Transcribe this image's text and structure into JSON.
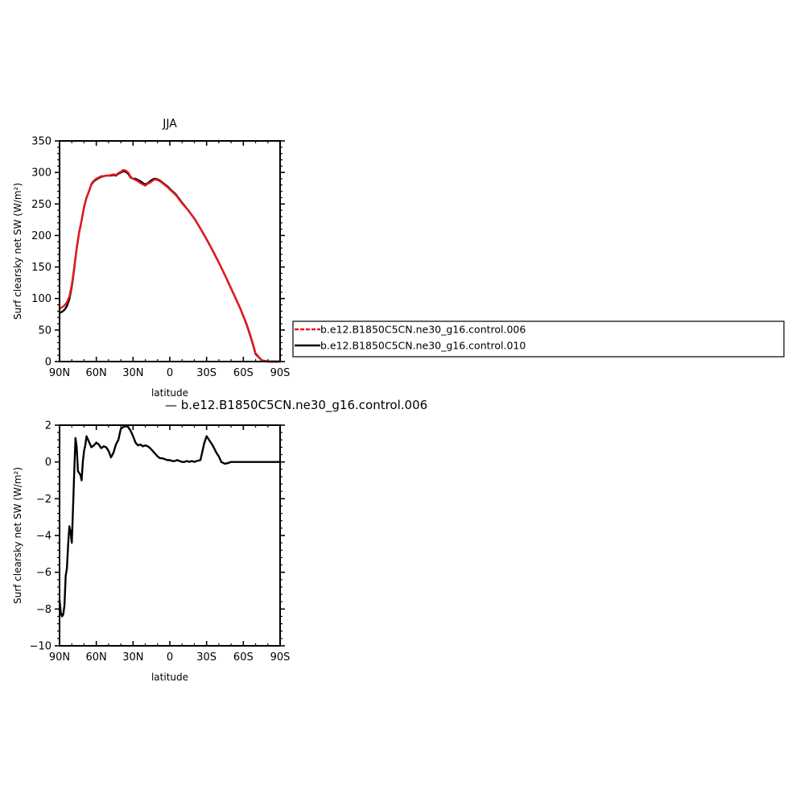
{
  "chart_data": [
    {
      "type": "line",
      "title": "JJA",
      "xlabel": "latitude",
      "ylabel": "Surf clearsky net SW (W/m²)",
      "xlim": [
        90,
        -90
      ],
      "ylim": [
        0,
        350
      ],
      "xticks": [
        90,
        60,
        30,
        0,
        -30,
        -60,
        -90
      ],
      "xtick_labels": [
        "90N",
        "60N",
        "30N",
        "0",
        "30S",
        "60S",
        "90S"
      ],
      "yticks": [
        0,
        50,
        100,
        150,
        200,
        250,
        300,
        350
      ],
      "ytick_labels": [
        "0",
        "50",
        "100",
        "150",
        "200",
        "250",
        "300",
        "350"
      ],
      "legend_position": "right",
      "series": [
        {
          "name": "b.e12.B1850C5CN.ne30_g16.control.006",
          "color": "#e8171e",
          "x": [
            90,
            88,
            86,
            84,
            82,
            80,
            78,
            76,
            74,
            72,
            70,
            68,
            66,
            64,
            62,
            60,
            58,
            56,
            54,
            52,
            50,
            48,
            46,
            44,
            42,
            40,
            38,
            36,
            34,
            32,
            30,
            28,
            26,
            24,
            22,
            20,
            18,
            16,
            14,
            12,
            10,
            8,
            6,
            4,
            2,
            0,
            -5,
            -10,
            -15,
            -20,
            -25,
            -30,
            -35,
            -40,
            -45,
            -50,
            -55,
            -58,
            -60,
            -62,
            -64,
            -66,
            -68,
            -70,
            -75,
            -80,
            -90
          ],
          "values": [
            84,
            86,
            89,
            94,
            103,
            122,
            150,
            180,
            205,
            224,
            245,
            260,
            270,
            282,
            287,
            290,
            292,
            294,
            294,
            295,
            295,
            296,
            297,
            296,
            299,
            301,
            304,
            303,
            300,
            293,
            290,
            288,
            286,
            283,
            281,
            279,
            282,
            284,
            287,
            289,
            288,
            286,
            283,
            280,
            277,
            273,
            264,
            251,
            240,
            227,
            211,
            194,
            176,
            157,
            137,
            116,
            95,
            82,
            72,
            63,
            52,
            40,
            27,
            13,
            2,
            0,
            0
          ]
        },
        {
          "name": "b.e12.B1850C5CN.ne30_g16.control.010",
          "color": "#000000",
          "x": [
            90,
            88,
            86,
            84,
            82,
            80,
            78,
            76,
            74,
            72,
            70,
            68,
            66,
            64,
            62,
            60,
            58,
            56,
            54,
            52,
            50,
            48,
            46,
            44,
            42,
            40,
            38,
            36,
            34,
            32,
            30,
            28,
            26,
            24,
            22,
            20,
            18,
            16,
            14,
            12,
            10,
            8,
            6,
            4,
            2,
            0,
            -5,
            -10,
            -15,
            -20,
            -25,
            -30,
            -35,
            -40,
            -45,
            -50,
            -55,
            -58,
            -60,
            -62,
            -64,
            -66,
            -68,
            -70,
            -75,
            -80,
            -90
          ],
          "values": [
            77,
            79,
            82,
            88,
            99,
            119,
            148,
            180,
            205,
            224,
            245,
            260,
            270,
            281,
            286,
            289,
            291,
            293,
            294,
            295,
            295,
            295,
            296,
            295,
            298,
            300,
            302,
            301,
            298,
            292,
            290,
            290,
            288,
            286,
            283,
            281,
            283,
            286,
            289,
            290,
            289,
            287,
            284,
            281,
            278,
            274,
            265,
            252,
            240,
            227,
            211,
            194,
            176,
            157,
            137,
            116,
            95,
            82,
            72,
            62,
            51,
            39,
            26,
            12,
            2,
            0,
            0
          ]
        }
      ]
    },
    {
      "type": "line",
      "title": "—  b.e12.B1850C5CN.ne30_g16.control.006",
      "xlabel": "latitude",
      "ylabel": "Surf clearsky net SW (W/m²)",
      "xlim": [
        90,
        -90
      ],
      "ylim": [
        -10,
        2
      ],
      "xticks": [
        90,
        60,
        30,
        0,
        -30,
        -60,
        -90
      ],
      "xtick_labels": [
        "90N",
        "60N",
        "30N",
        "0",
        "30S",
        "60S",
        "90S"
      ],
      "yticks": [
        -10,
        -8,
        -6,
        -4,
        -2,
        0,
        2
      ],
      "ytick_labels": [
        "−10",
        "−8",
        "−6",
        "−4",
        "−2",
        "0",
        "2"
      ],
      "series": [
        {
          "color": "#000000",
          "x": [
            90,
            89,
            88,
            87,
            86,
            85,
            84,
            83,
            82,
            81,
            80,
            79,
            78,
            77,
            76,
            75,
            74,
            73,
            72,
            71,
            70,
            69,
            68,
            66,
            64,
            62,
            60,
            58,
            56,
            54,
            52,
            50,
            48,
            46,
            44,
            42,
            40,
            38,
            36,
            34,
            32,
            30,
            28,
            26,
            24,
            22,
            20,
            18,
            16,
            14,
            12,
            10,
            8,
            6,
            4,
            2,
            0,
            -2,
            -4,
            -6,
            -8,
            -10,
            -12,
            -14,
            -16,
            -18,
            -20,
            -22,
            -25,
            -28,
            -30,
            -32,
            -35,
            -38,
            -40,
            -42,
            -45,
            -48,
            -50,
            -52,
            -54,
            -56,
            -58,
            -60,
            -62,
            -64,
            -66,
            -68,
            -70,
            -75,
            -80,
            -90
          ],
          "values": [
            -7.5,
            -8.2,
            -8.4,
            -8.3,
            -7.8,
            -6.2,
            -5.8,
            -4.5,
            -3.5,
            -3.8,
            -4.4,
            -2.5,
            -0.5,
            1.3,
            0.8,
            -0.5,
            -0.6,
            -0.7,
            -1.0,
            0.0,
            0.6,
            0.9,
            1.4,
            1.1,
            0.8,
            0.9,
            1.05,
            0.95,
            0.75,
            0.85,
            0.8,
            0.6,
            0.25,
            0.5,
            0.95,
            1.2,
            1.8,
            1.9,
            1.95,
            1.9,
            1.7,
            1.4,
            1.05,
            0.9,
            0.95,
            0.85,
            0.9,
            0.85,
            0.75,
            0.6,
            0.45,
            0.3,
            0.2,
            0.2,
            0.15,
            0.1,
            0.1,
            0.05,
            0.05,
            0.1,
            0.05,
            0.0,
            0.0,
            0.05,
            0.0,
            0.05,
            0.0,
            0.05,
            0.1,
            1.0,
            1.4,
            1.2,
            0.9,
            0.5,
            0.3,
            0.0,
            -0.1,
            -0.05,
            0.0,
            0.0,
            0.0,
            0.0,
            0.0,
            0.0,
            0.0,
            0.0,
            0.0,
            0.0,
            0.0,
            0.0,
            0.0,
            0.0
          ]
        }
      ]
    }
  ]
}
